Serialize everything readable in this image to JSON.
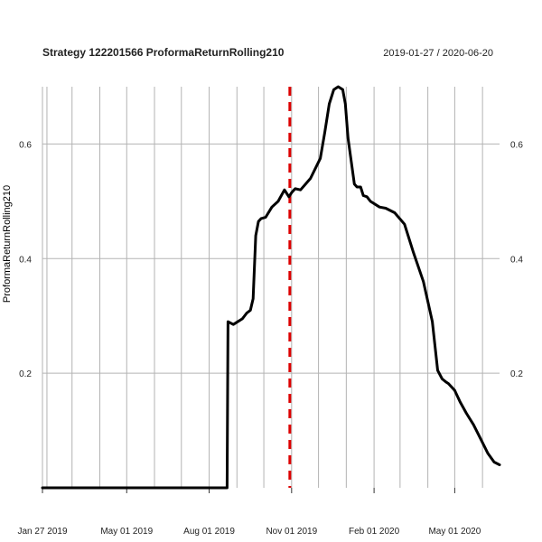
{
  "chart_data": {
    "type": "line",
    "title": "Strategy 122201566 ProformaReturnRolling210",
    "date_range": "2019-01-27 / 2020-06-20",
    "ylabel": "ProformaReturnRolling210",
    "xlabel": "",
    "x_range": [
      "2019-01-27",
      "2020-06-20"
    ],
    "ylim": [
      0.0,
      0.7
    ],
    "grid": true,
    "x_ticks": [
      {
        "date": "2019-01-27",
        "label": "Jan 27 2019"
      },
      {
        "date": "2019-05-01",
        "label": "May 01 2019"
      },
      {
        "date": "2019-08-01",
        "label": "Aug 01 2019"
      },
      {
        "date": "2019-11-01",
        "label": "Nov 01 2019"
      },
      {
        "date": "2020-02-01",
        "label": "Feb 01 2020"
      },
      {
        "date": "2020-05-01",
        "label": "May 01 2020"
      }
    ],
    "y_ticks": [
      0.2,
      0.4,
      0.6
    ],
    "reference_line": {
      "date": "2019-10-30",
      "color": "#dd0000",
      "style": "dashed"
    },
    "series": [
      {
        "color": "#000000",
        "x": [
          "2019-01-27",
          "2019-08-21",
          "2019-08-22",
          "2019-08-28",
          "2019-09-07",
          "2019-09-12",
          "2019-09-16",
          "2019-09-19",
          "2019-09-22",
          "2019-09-25",
          "2019-09-28",
          "2019-10-03",
          "2019-10-10",
          "2019-10-17",
          "2019-10-24",
          "2019-10-29",
          "2019-11-01",
          "2019-11-05",
          "2019-11-11",
          "2019-11-22",
          "2019-12-03",
          "2019-12-08",
          "2019-12-13",
          "2019-12-18",
          "2019-12-23",
          "2019-12-28",
          "2019-12-31",
          "2020-01-03",
          "2020-01-10",
          "2020-01-13",
          "2020-01-17",
          "2020-01-20",
          "2020-01-24",
          "2020-01-28",
          "2020-02-07",
          "2020-02-14",
          "2020-02-24",
          "2020-03-06",
          "2020-03-16",
          "2020-03-27",
          "2020-04-06",
          "2020-04-12",
          "2020-04-17",
          "2020-04-21",
          "2020-04-24",
          "2020-05-01",
          "2020-05-07",
          "2020-05-14",
          "2020-05-22",
          "2020-05-30",
          "2020-06-07",
          "2020-06-14",
          "2020-06-20"
        ],
        "y": [
          0.0,
          0.0,
          0.29,
          0.285,
          0.295,
          0.305,
          0.31,
          0.33,
          0.44,
          0.465,
          0.47,
          0.472,
          0.49,
          0.5,
          0.52,
          0.508,
          0.515,
          0.522,
          0.52,
          0.54,
          0.575,
          0.62,
          0.67,
          0.695,
          0.7,
          0.695,
          0.67,
          0.61,
          0.53,
          0.525,
          0.525,
          0.51,
          0.508,
          0.5,
          0.49,
          0.488,
          0.48,
          0.46,
          0.41,
          0.36,
          0.29,
          0.205,
          0.19,
          0.185,
          0.182,
          0.17,
          0.15,
          0.13,
          0.11,
          0.085,
          0.06,
          0.045,
          0.04
        ]
      }
    ]
  }
}
